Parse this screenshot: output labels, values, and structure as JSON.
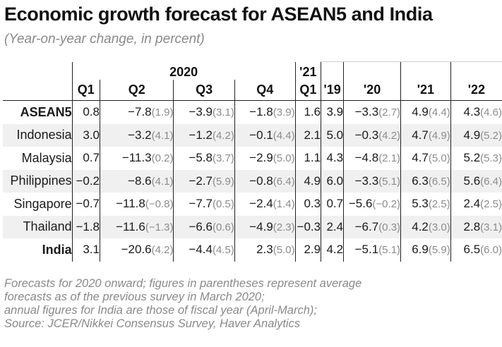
{
  "title": "Economic growth forecast for ASEAN5 and India",
  "subtitle": "(Year-on-year change, in percent)",
  "column_groups": {
    "y2020": "2020",
    "y21": "'21"
  },
  "columns": [
    "Q1",
    "Q2",
    "Q3",
    "Q4",
    "Q1",
    "'19",
    "'20",
    "'21",
    "'22"
  ],
  "notes": [
    "Forecasts for 2020 onward; figures in parentheses represent average",
    "forecasts as of the previous survey in March 2020;",
    "annual figures for India are those of fiscal year (April-March);",
    "Source: JCER/Nikkei Consensus Survey, Haver Analytics"
  ],
  "chart_data": {
    "type": "table",
    "title": "Economic growth forecast for ASEAN5 and India",
    "subtitle": "(Year-on-year change, in percent)",
    "columns": [
      "2020 Q1",
      "2020 Q2",
      "2020 Q3",
      "2020 Q4",
      "'21 Q1",
      "'19",
      "'20",
      "'21",
      "'22"
    ],
    "rows": [
      {
        "name": "ASEAN5",
        "bold": true,
        "v": [
          "0.8",
          "−7.8",
          "−3.9",
          "−1.8",
          "1.6",
          "3.9",
          "−3.3",
          "4.9",
          "4.3"
        ],
        "p": [
          "",
          "(1.9)",
          "(3.1)",
          "(3.9)",
          "",
          "",
          "(2.7)",
          "(4.4)",
          "(4.6)"
        ]
      },
      {
        "name": "Indonesia",
        "bold": false,
        "v": [
          "3.0",
          "−3.2",
          "−1.2",
          "−0.1",
          "2.1",
          "5.0",
          "−0.3",
          "4.7",
          "4.9"
        ],
        "p": [
          "",
          "(4.1)",
          "(4.2)",
          "(4.4)",
          "",
          "",
          "(4.2)",
          "(4.9)",
          "(5.2)"
        ]
      },
      {
        "name": "Malaysia",
        "bold": false,
        "v": [
          "0.7",
          "−11.3",
          "−5.8",
          "−2.9",
          "1.1",
          "4.3",
          "−4.8",
          "4.7",
          "5.2"
        ],
        "p": [
          "",
          "(0.2)",
          "(3.7)",
          "(5.0)",
          "",
          "",
          "(2.1)",
          "(5.0)",
          "(5.3)"
        ]
      },
      {
        "name": "Philippines",
        "bold": false,
        "v": [
          "−0.2",
          "−8.6",
          "−2.7",
          "−0.8",
          "4.9",
          "6.0",
          "−3.3",
          "6.3",
          "5.6"
        ],
        "p": [
          "",
          "(4.1)",
          "(5.9)",
          "(6.4)",
          "",
          "",
          "(5.1)",
          "(6.5)",
          "(6.4)"
        ]
      },
      {
        "name": "Singapore",
        "bold": false,
        "v": [
          "−0.7",
          "−11.8",
          "−7.7",
          "−2.4",
          "0.3",
          "0.7",
          "−5.6",
          "5.3",
          "2.4"
        ],
        "p": [
          "",
          "(−0.8)",
          "(0.5)",
          "(1.4)",
          "",
          "",
          "(−0.2)",
          "(2.5)",
          "(2.5)"
        ]
      },
      {
        "name": "Thailand",
        "bold": false,
        "v": [
          "−1.8",
          "−11.6",
          "−6.6",
          "−4.9",
          "−0.3",
          "2.4",
          "−6.7",
          "4.2",
          "2.8"
        ],
        "p": [
          "",
          "(−1.3)",
          "(0.6)",
          "(2.3)",
          "",
          "",
          "(0.3)",
          "(3.0)",
          "(3.1)"
        ]
      },
      {
        "name": "India",
        "bold": true,
        "v": [
          "3.1",
          "−20.6",
          "−4.4",
          "2.3",
          "2.9",
          "4.2",
          "−5.1",
          "6.9",
          "6.5"
        ],
        "p": [
          "",
          "(4.2)",
          "(4.5)",
          "(5.0)",
          "",
          "",
          "(5.1)",
          "(5.9)",
          "(6.0)"
        ]
      }
    ]
  }
}
